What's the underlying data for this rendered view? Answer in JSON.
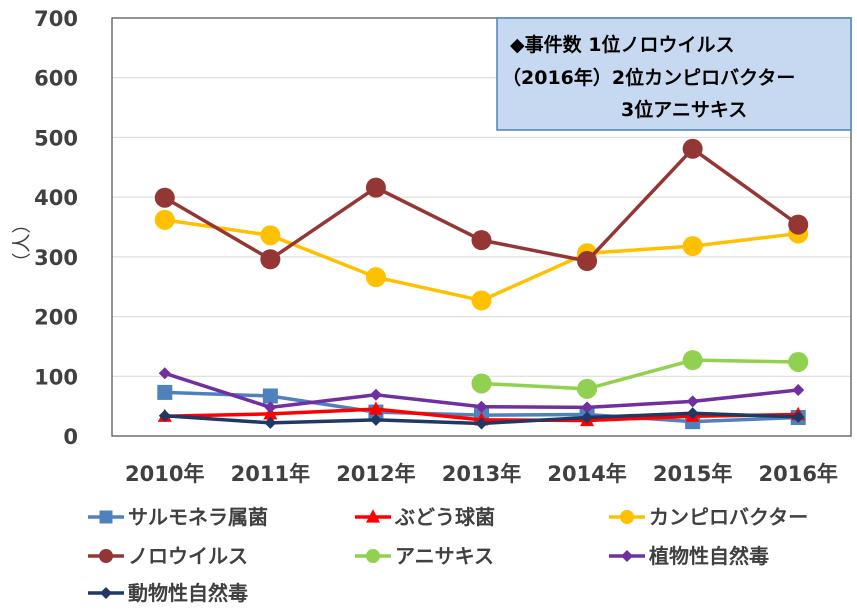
{
  "chart_data": {
    "type": "line",
    "title": "",
    "xlabel": "",
    "ylabel": "（人）",
    "ylim": [
      0,
      700
    ],
    "yticks": [
      0,
      100,
      200,
      300,
      400,
      500,
      600,
      700
    ],
    "grid": true,
    "legend_position": "bottom",
    "categories": [
      "2010年",
      "2011年",
      "2012年",
      "2013年",
      "2014年",
      "2015年",
      "2016年"
    ],
    "series": [
      {
        "name": "サルモネラ属菌",
        "color": "#4f81bd",
        "marker": "square",
        "values": [
          73,
          67,
          40,
          35,
          36,
          24,
          31
        ]
      },
      {
        "name": "ぶどう球菌",
        "color": "#ff0000",
        "marker": "triangle",
        "values": [
          33,
          37,
          45,
          27,
          26,
          33,
          36
        ]
      },
      {
        "name": "カンピロバクター",
        "color": "#ffc000",
        "marker": "circle",
        "values": [
          362,
          336,
          266,
          227,
          306,
          318,
          339
        ]
      },
      {
        "name": "ノロウイルス",
        "color": "#943634",
        "marker": "circle",
        "values": [
          399,
          296,
          416,
          328,
          293,
          481,
          354
        ]
      },
      {
        "name": "アニサキス",
        "color": "#92d050",
        "marker": "circle",
        "values": [
          null,
          null,
          null,
          88,
          79,
          127,
          124
        ]
      },
      {
        "name": "植物性自然毒",
        "color": "#7030a0",
        "marker": "diamond",
        "values": [
          105,
          48,
          69,
          49,
          48,
          58,
          77
        ]
      },
      {
        "name": "動物性自然毒",
        "color": "#1f3864",
        "marker": "diamond",
        "values": [
          34,
          22,
          27,
          21,
          31,
          38,
          32
        ]
      }
    ],
    "annotation": {
      "lines": [
        "◆事件数  1位ノロウイルス",
        "（2016年）2位カンピロバクター",
        "3位アニサキス"
      ],
      "background": "#c6d9f1",
      "border": "#4f81bd"
    }
  }
}
